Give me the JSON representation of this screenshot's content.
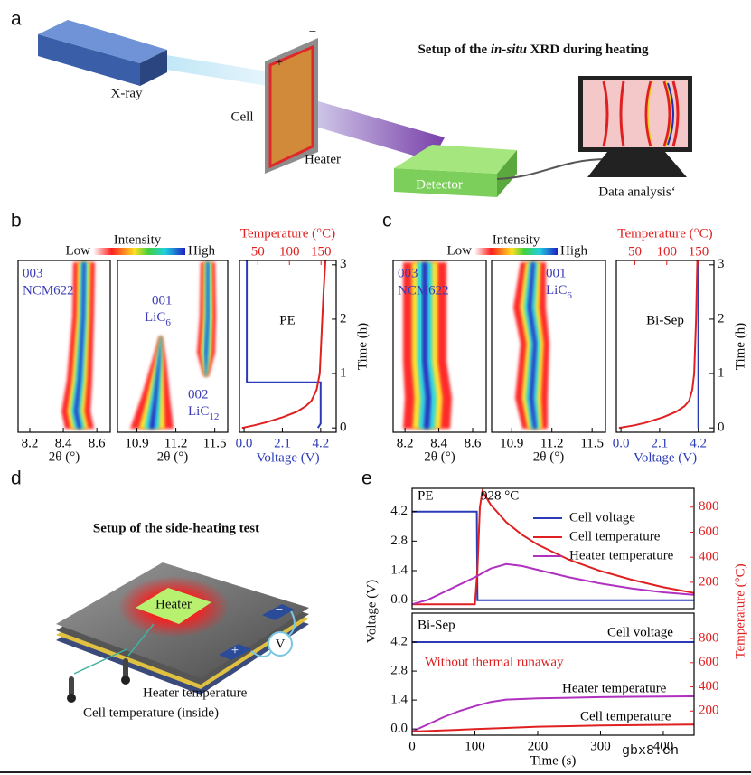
{
  "panels": {
    "a": {
      "label": "a",
      "title": [
        "Setup of the ",
        "in-situ",
        " XRD during heating"
      ],
      "xray": "X-ray",
      "cell": "Cell",
      "plus": "+",
      "minus": "−",
      "heater": "Heater",
      "detector": "Detector",
      "analysis": "Data analysis‘"
    },
    "b": {
      "label": "b",
      "intensity": "Intensity",
      "low": "Low",
      "high": "High"
    },
    "c": {
      "label": "c",
      "intensity": "Intensity",
      "low": "Low",
      "high": "High"
    },
    "d": {
      "label": "d",
      "title": "Setup of the side-heating test",
      "heater": "Heater",
      "plus": "+",
      "minus": "−",
      "meter": "V",
      "heater_temp": "Heater temperature",
      "cell_temp": "Cell temperature (inside)"
    },
    "e": {
      "label": "e"
    }
  },
  "watermark": "gbx8.cn",
  "chart_data": [
    {
      "type": "image",
      "xlim": [
        8.13,
        8.68
      ],
      "xticks": [
        8.2,
        8.4,
        8.6
      ],
      "xlabel": "2θ (°)",
      "annotations": [
        "003",
        "NCM622"
      ]
    },
    {
      "type": "image",
      "xlim": [
        10.75,
        11.6
      ],
      "xticks": [
        10.9,
        11.2,
        11.5
      ],
      "xlabel": "2θ (°)",
      "annotations": [
        "001",
        {
          "base": "LiC",
          "sub": "6"
        },
        "002",
        {
          "base": "LiC",
          "sub": "12"
        }
      ]
    },
    {
      "type": "line",
      "value_axis": "x",
      "annotations": [
        "PE"
      ],
      "xlim": [
        -0.25,
        5.05
      ],
      "xticks": [
        {
          "value": 0,
          "label": "0.0"
        },
        2.1,
        4.2
      ],
      "xlabel": "Voltage (V)",
      "x2lim": [
        21,
        174
      ],
      "x2ticks": [
        50,
        100,
        150
      ],
      "x2label": "Temperature (°C)",
      "ylim": [
        -0.08,
        3.08
      ],
      "yticks": [
        0,
        1,
        2,
        3
      ],
      "ylabel": "Time (h)",
      "series": [
        {
          "color": "#2b3bb8",
          "axis": "x",
          "y": [
            0,
            0.08,
            0.84,
            0.84,
            3.08
          ],
          "values": [
            4.05,
            4.2,
            4.2,
            0.15,
            0.15
          ]
        },
        {
          "color": "#e02020",
          "axis": "x2",
          "y": [
            0,
            0.05,
            0.1,
            0.2,
            0.3,
            0.4,
            0.5,
            0.7,
            1,
            1.5,
            2,
            2.5,
            3.08
          ],
          "values": [
            25,
            45,
            62,
            90,
            112,
            126,
            135,
            143,
            148,
            150,
            152,
            154,
            157
          ]
        }
      ]
    },
    {
      "type": "image",
      "xlim": [
        8.13,
        8.68
      ],
      "xticks": [
        8.2,
        8.4,
        8.6
      ],
      "xlabel": "2θ (°)",
      "annotations": [
        "003",
        "NCM622"
      ]
    },
    {
      "type": "image",
      "xlim": [
        10.75,
        11.6
      ],
      "xticks": [
        10.9,
        11.2,
        11.5
      ],
      "xlabel": "2θ (°)",
      "annotations": [
        "001",
        {
          "base": "LiC",
          "sub": "6"
        }
      ]
    },
    {
      "type": "line",
      "value_axis": "x",
      "annotations": [
        "Bi-Sep"
      ],
      "xlim": [
        -0.25,
        5.05
      ],
      "xticks": [
        {
          "value": 0,
          "label": "0.0"
        },
        2.1,
        4.2
      ],
      "xlabel": "Voltage (V)",
      "x2lim": [
        21,
        174
      ],
      "x2ticks": [
        50,
        100,
        150
      ],
      "x2label": "Temperature (°C)",
      "ylim": [
        -0.08,
        3.08
      ],
      "yticks": [
        0,
        1,
        2,
        3
      ],
      "ylabel": "Time (h)",
      "series": [
        {
          "color": "#2b3bb8",
          "axis": "x",
          "y": [
            0,
            3.08
          ],
          "values": [
            4.2,
            4.2
          ]
        },
        {
          "color": "#e02020",
          "axis": "x2",
          "y": [
            0,
            0.05,
            0.1,
            0.2,
            0.3,
            0.4,
            0.5,
            0.7,
            1,
            2,
            3.08
          ],
          "values": [
            25,
            50,
            68,
            95,
            115,
            128,
            135,
            140,
            143,
            146,
            148
          ]
        }
      ]
    },
    {
      "type": "line",
      "value_axis": "y",
      "annotations": [
        "PE",
        "928 °C"
      ],
      "legend": "upper right",
      "xlim": [
        0,
        449
      ],
      "ylim": [
        -0.4,
        5.3
      ],
      "yticks": [
        {
          "value": 0,
          "label": "0.0"
        },
        1.4,
        2.8,
        4.2
      ],
      "y2lim": [
        -10,
        950
      ],
      "y2ticks": [
        200,
        400,
        600,
        800
      ],
      "series": [
        {
          "name": "Cell voltage",
          "color": "#2b3bb8",
          "x": [
            0,
            103,
            104,
            449
          ],
          "values": [
            4.2,
            4.2,
            0,
            0
          ]
        },
        {
          "name": "Cell temperature",
          "color": "#e02020",
          "axis": "y2",
          "x": [
            0,
            100,
            104,
            108,
            112,
            125,
            150,
            175,
            200,
            250,
            300,
            350,
            400,
            449
          ],
          "values": [
            25,
            25,
            300,
            800,
            928,
            820,
            680,
            580,
            500,
            380,
            290,
            220,
            160,
            115
          ]
        },
        {
          "name": "Heater temperature",
          "color": "#b030c0",
          "axis": "y2",
          "x": [
            0,
            25,
            50,
            75,
            100,
            125,
            150,
            175,
            200,
            250,
            300,
            350,
            400,
            449
          ],
          "values": [
            25,
            60,
            120,
            180,
            240,
            310,
            345,
            330,
            300,
            240,
            190,
            150,
            120,
            100
          ]
        }
      ]
    },
    {
      "type": "line",
      "value_axis": "y",
      "annotations": [
        "Bi-Sep",
        "Cell voltage",
        "Without thermal runaway",
        "Heater temperature",
        "Cell temperature"
      ],
      "xlim": [
        0,
        449
      ],
      "xticks": [
        0,
        100,
        200,
        300,
        400
      ],
      "xlabel": "Time (s)",
      "ylim": [
        -0.3,
        5.6
      ],
      "yticks": [
        {
          "value": 0,
          "label": "0.0"
        },
        1.4,
        2.8,
        4.2
      ],
      "ylabel": "Voltage (V)",
      "y2lim": [
        0,
        1010
      ],
      "y2ticks": [
        200,
        400,
        600,
        800
      ],
      "y2label": "Temperature (°C)",
      "series": [
        {
          "color": "#2b3bb8",
          "x": [
            0,
            449
          ],
          "values": [
            4.2,
            4.2
          ]
        },
        {
          "color": "#b030c0",
          "axis": "y2",
          "x": [
            0,
            25,
            50,
            75,
            100,
            125,
            150,
            200,
            250,
            300,
            350,
            400,
            449
          ],
          "values": [
            30,
            90,
            150,
            200,
            240,
            275,
            295,
            305,
            310,
            315,
            318,
            320,
            322
          ]
        },
        {
          "color": "#e02020",
          "axis": "y2",
          "x": [
            0,
            100,
            150,
            200,
            300,
            449
          ],
          "values": [
            30,
            50,
            60,
            70,
            80,
            88
          ]
        }
      ]
    }
  ]
}
